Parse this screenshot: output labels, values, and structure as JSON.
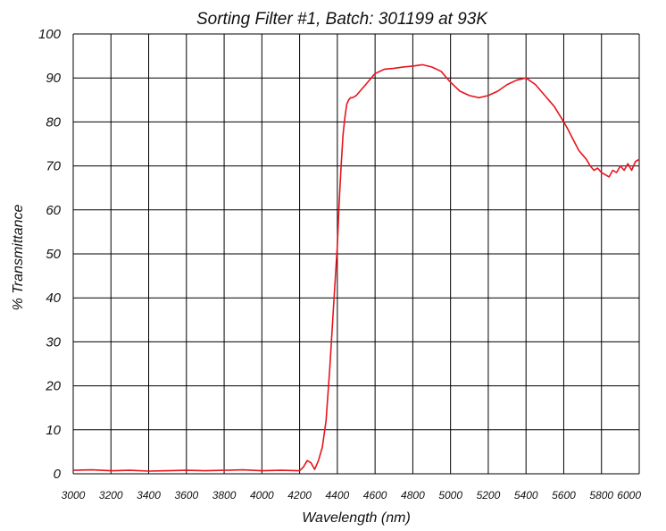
{
  "chart_data": {
    "type": "line",
    "title": "Sorting Filter #1, Batch: 301199  at 93K",
    "xlabel": "Wavelength (nm)",
    "ylabel": "% Transmittance",
    "xlim": [
      3000,
      6000
    ],
    "ylim": [
      0,
      100
    ],
    "x_ticks": [
      3000,
      3200,
      3400,
      3600,
      3800,
      4000,
      4200,
      4400,
      4600,
      4800,
      5000,
      5200,
      5400,
      5600,
      5800,
      6000
    ],
    "y_ticks": [
      0,
      10,
      20,
      30,
      40,
      50,
      60,
      70,
      80,
      90,
      100
    ],
    "grid": true,
    "line_color": "#e8141c",
    "series": [
      {
        "x": [
          3000,
          3100,
          3200,
          3300,
          3400,
          3500,
          3600,
          3700,
          3800,
          3900,
          4000,
          4100,
          4200,
          4220,
          4240,
          4260,
          4280,
          4300,
          4320,
          4340,
          4360,
          4380,
          4400,
          4410,
          4420,
          4430,
          4440,
          4450,
          4460,
          4470,
          4480,
          4500,
          4550,
          4600,
          4650,
          4700,
          4750,
          4800,
          4850,
          4900,
          4950,
          5000,
          5050,
          5100,
          5150,
          5200,
          5250,
          5300,
          5350,
          5400,
          5450,
          5500,
          5550,
          5600,
          5620,
          5650,
          5680,
          5700,
          5720,
          5740,
          5760,
          5780,
          5800,
          5820,
          5840,
          5860,
          5880,
          5900,
          5920,
          5940,
          5960,
          5980,
          6000
        ],
        "y": [
          0.8,
          0.9,
          0.7,
          0.8,
          0.6,
          0.7,
          0.8,
          0.7,
          0.8,
          0.9,
          0.7,
          0.8,
          0.7,
          1.5,
          3.0,
          2.5,
          1.0,
          3.0,
          6.0,
          12.0,
          24.0,
          38.0,
          52.0,
          62.0,
          70.0,
          77.0,
          81.0,
          84.0,
          85.0,
          85.5,
          85.5,
          86.0,
          88.5,
          91.0,
          92.0,
          92.2,
          92.5,
          92.7,
          93.0,
          92.5,
          91.5,
          89.0,
          87.0,
          86.0,
          85.5,
          86.0,
          87.0,
          88.5,
          89.5,
          90.0,
          88.5,
          86.0,
          83.5,
          80.0,
          78.5,
          76.0,
          73.5,
          72.5,
          71.5,
          70.0,
          69.0,
          69.5,
          68.5,
          68.0,
          67.5,
          69.0,
          68.5,
          70.0,
          69.0,
          70.5,
          69.0,
          71.0,
          71.5
        ]
      }
    ]
  }
}
